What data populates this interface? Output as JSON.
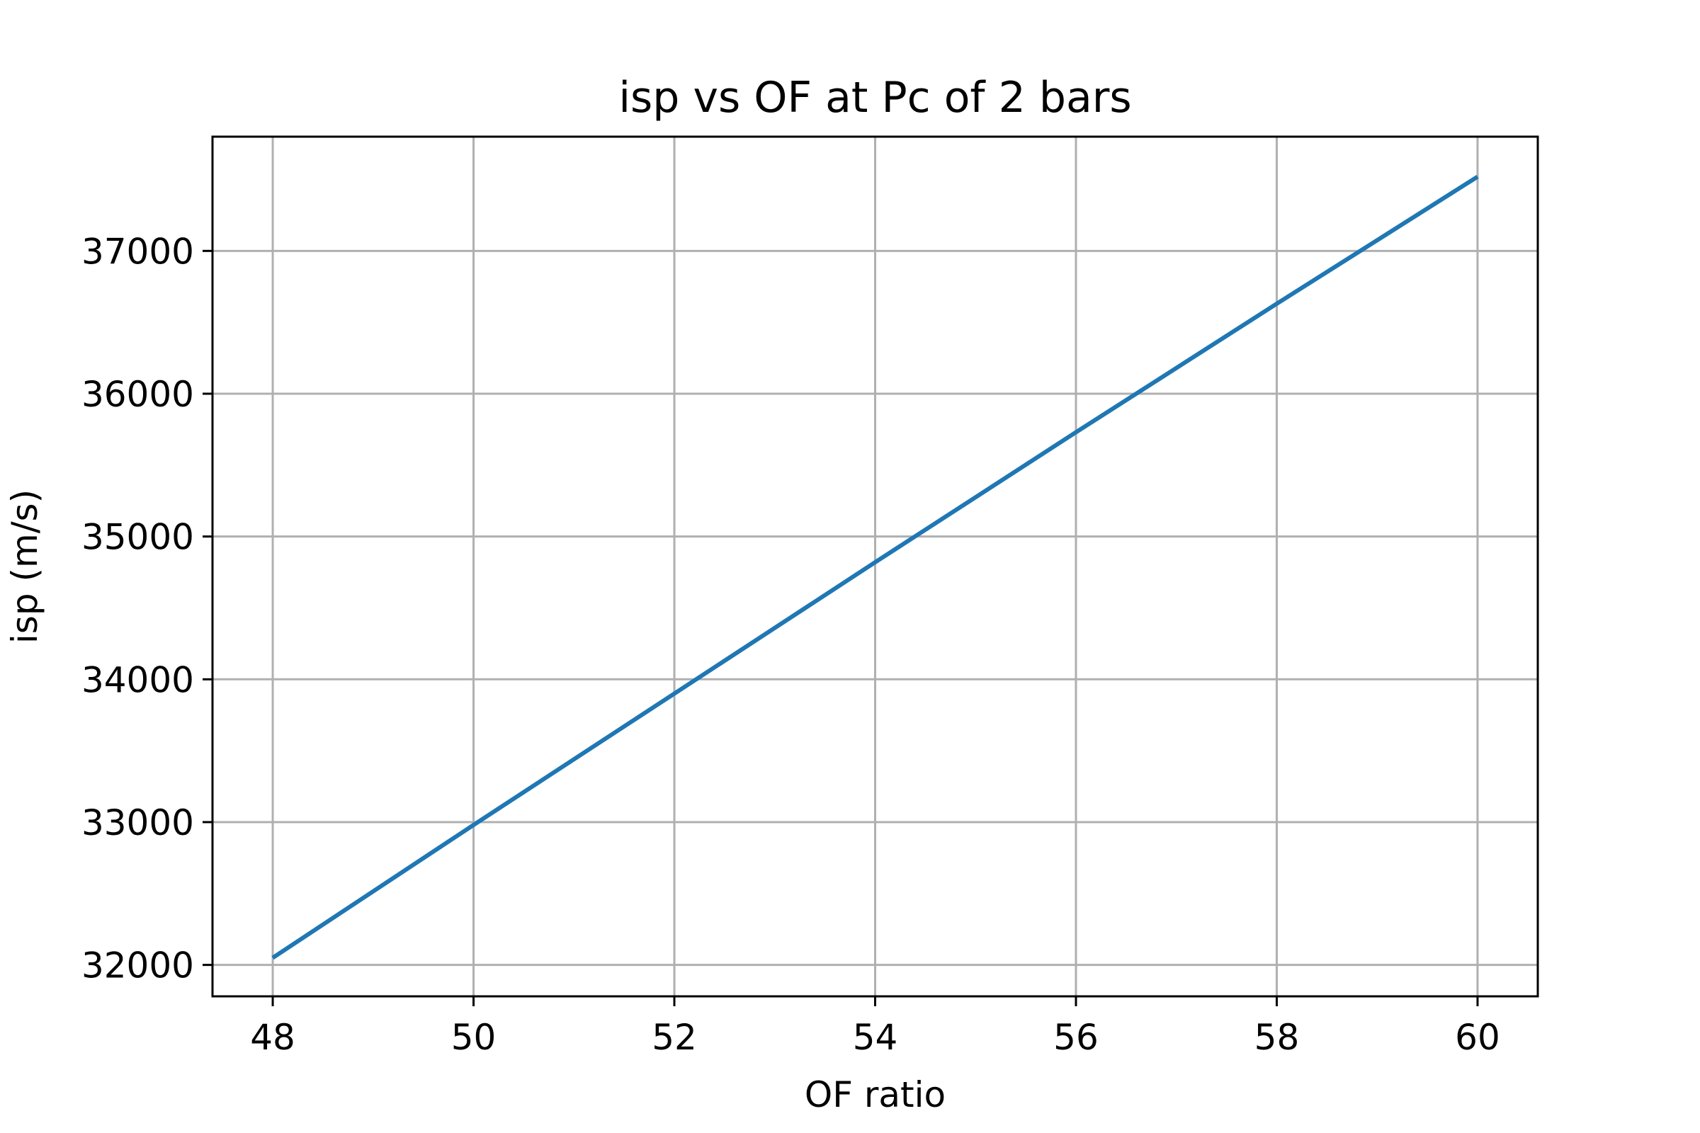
{
  "chart_data": {
    "type": "line",
    "title": "isp vs OF at Pc of 2 bars",
    "xlabel": "OF ratio",
    "ylabel": "isp (m/s)",
    "xlim": [
      47.4,
      60.6
    ],
    "ylim": [
      31780,
      37800
    ],
    "xticks": [
      48,
      50,
      52,
      54,
      56,
      58,
      60
    ],
    "yticks": [
      32000,
      33000,
      34000,
      35000,
      36000,
      37000
    ],
    "grid": true,
    "legend": "none",
    "series": [
      {
        "color": "#1f77b4",
        "x": [
          48,
          50,
          52,
          54,
          56,
          58,
          60
        ],
        "y": [
          32050,
          32980,
          33900,
          34820,
          35730,
          36630,
          37520
        ]
      }
    ]
  }
}
